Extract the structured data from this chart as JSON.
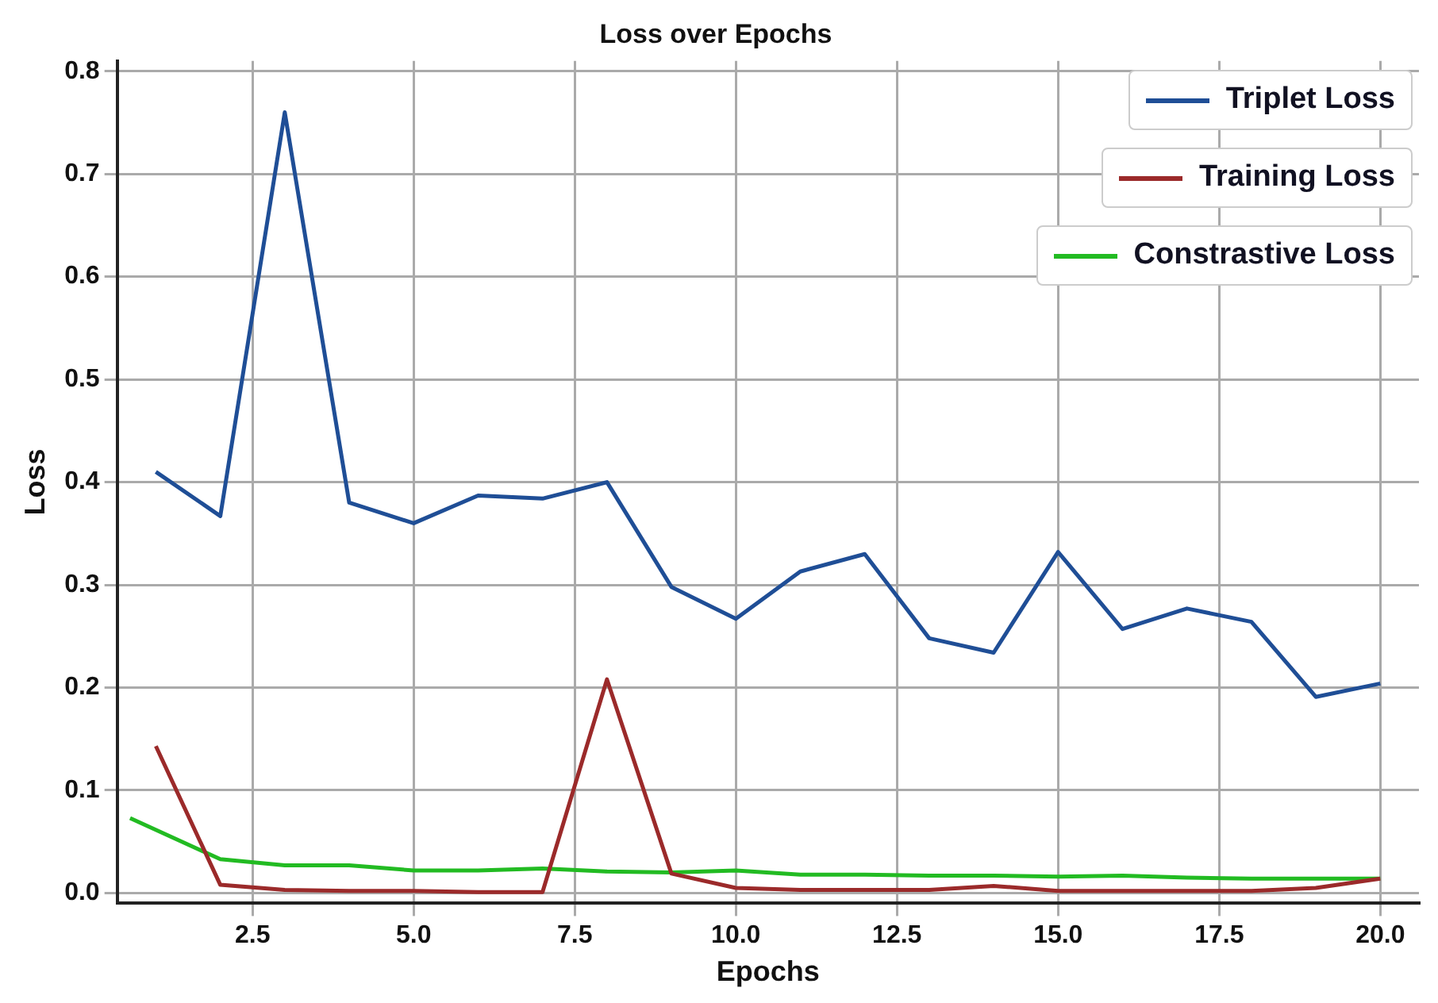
{
  "chart_data": {
    "type": "line",
    "title": "Loss over Epochs",
    "xlabel": "Epochs",
    "ylabel": "Loss",
    "xlim": [
      0.4,
      20.6
    ],
    "xticks": [
      {
        "value": 2.5,
        "label": "2.5"
      },
      {
        "value": 5,
        "label": "5.0"
      },
      {
        "value": 7.5,
        "label": "7.5"
      },
      {
        "value": 10,
        "label": "10.0"
      },
      {
        "value": 12.5,
        "label": "12.5"
      },
      {
        "value": 15,
        "label": "15.0"
      },
      {
        "value": 17.5,
        "label": "17.5"
      },
      {
        "value": 20,
        "label": "20.0"
      }
    ],
    "ylim": [
      -0.01,
      0.81
    ],
    "yticks": [
      {
        "value": 0,
        "label": "0.0"
      },
      0.1,
      0.2,
      0.3,
      0.4,
      0.5,
      0.6,
      0.7,
      0.8
    ],
    "grid": true,
    "legend": "top right",
    "marker": "none",
    "line_style": "solid",
    "series": [
      {
        "name": "Triplet Loss",
        "color": "#1f4e96",
        "x": [
          1,
          2,
          3,
          4,
          5,
          6,
          7,
          8,
          9,
          10,
          11,
          12,
          13,
          14,
          15,
          16,
          17,
          18,
          19,
          20
        ],
        "values": [
          0.41,
          0.367,
          0.76,
          0.38,
          0.36,
          0.387,
          0.384,
          0.4,
          0.298,
          0.267,
          0.313,
          0.33,
          0.248,
          0.234,
          0.332,
          0.257,
          0.277,
          0.264,
          0.191,
          0.204
        ]
      },
      {
        "name": "Training Loss",
        "color": "#9b2a2a",
        "x": [
          1,
          2,
          3,
          4,
          5,
          6,
          7,
          8,
          9,
          10,
          11,
          12,
          13,
          14,
          15,
          16,
          17,
          18,
          19,
          20
        ],
        "values": [
          0.143,
          0.008,
          0.003,
          0.002,
          0.002,
          0.001,
          0.001,
          0.208,
          0.019,
          0.005,
          0.003,
          0.003,
          0.003,
          0.007,
          0.002,
          0.002,
          0.002,
          0.002,
          0.005,
          0.014
        ]
      },
      {
        "name": "Constrastive Loss",
        "color": "#22bb22",
        "x": [
          0.6,
          2,
          3,
          4,
          5,
          6,
          7,
          8,
          9,
          10,
          11,
          12,
          13,
          14,
          15,
          16,
          17,
          18,
          19,
          20
        ],
        "values": [
          0.073,
          0.033,
          0.027,
          0.027,
          0.022,
          0.022,
          0.024,
          0.021,
          0.02,
          0.022,
          0.018,
          0.018,
          0.017,
          0.017,
          0.016,
          0.017,
          0.015,
          0.014,
          0.014,
          0.014
        ]
      }
    ]
  }
}
